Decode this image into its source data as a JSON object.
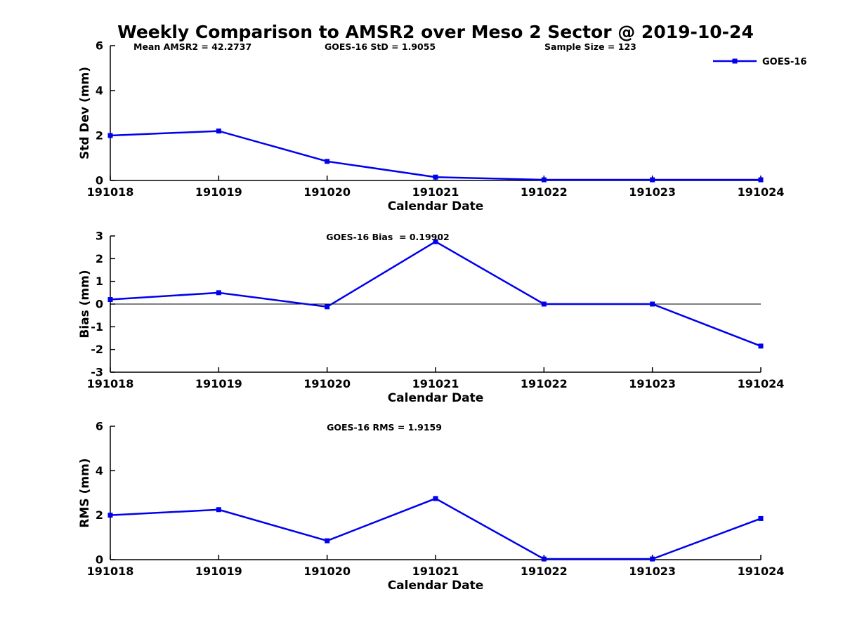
{
  "page": {
    "title": "Weekly Comparison to AMSR2 over Meso 2 Sector @ 2019-10-24"
  },
  "colors": {
    "line": "#0000EE",
    "axis": "#000000",
    "text": "#000000",
    "background": "#FFFFFF"
  },
  "legend": {
    "label": "GOES-16"
  },
  "chart_data": [
    {
      "id": "std-dev",
      "type": "line",
      "title": "",
      "xlabel": "Calendar Date",
      "ylabel": "Std Dev (mm)",
      "ylim": [
        0,
        6
      ],
      "yticks": [
        0,
        2,
        4,
        6
      ],
      "categories": [
        "191018",
        "191019",
        "191020",
        "191021",
        "191022",
        "191023",
        "191024"
      ],
      "series": [
        {
          "name": "GOES-16",
          "values": [
            2.0,
            2.2,
            0.85,
            0.15,
            0.03,
            0.03,
            0.03
          ]
        }
      ],
      "annotations": [
        {
          "text": "Mean AMSR2 = 42.2737",
          "x": 190,
          "anchor": "start"
        },
        {
          "text": "GOES-16 StD = 1.9055",
          "x": 462,
          "anchor": "start"
        },
        {
          "text": "Sample Size = 123",
          "x": 775,
          "anchor": "start"
        }
      ],
      "zero_line": false,
      "show_legend": true,
      "legend_position": "top-right",
      "grid": false
    },
    {
      "id": "bias",
      "type": "line",
      "title": "",
      "xlabel": "Calendar Date",
      "ylabel": "Bias (mm)",
      "ylim": [
        -3,
        3
      ],
      "yticks": [
        -3,
        -2,
        -1,
        0,
        1,
        2,
        3
      ],
      "categories": [
        "191018",
        "191019",
        "191020",
        "191021",
        "191022",
        "191023",
        "191024"
      ],
      "series": [
        {
          "name": "GOES-16",
          "values": [
            0.2,
            0.5,
            -0.12,
            2.75,
            0.0,
            0.0,
            -1.85
          ]
        }
      ],
      "annotations": [
        {
          "text": "GOES-16 Bias  = 0.19902",
          "x": 552,
          "anchor": "middle"
        }
      ],
      "zero_line": true,
      "show_legend": false,
      "grid": false
    },
    {
      "id": "rms",
      "type": "line",
      "title": "",
      "xlabel": "Calendar Date",
      "ylabel": "RMS (mm)",
      "ylim": [
        0,
        6
      ],
      "yticks": [
        0,
        2,
        4,
        6
      ],
      "categories": [
        "191018",
        "191019",
        "191020",
        "191021",
        "191022",
        "191023",
        "191024"
      ],
      "series": [
        {
          "name": "GOES-16",
          "values": [
            2.0,
            2.25,
            0.85,
            2.75,
            0.03,
            0.03,
            1.85
          ]
        }
      ],
      "annotations": [
        {
          "text": "GOES-16 RMS = 1.9159",
          "x": 547,
          "anchor": "middle"
        }
      ],
      "zero_line": false,
      "show_legend": false,
      "grid": false
    }
  ]
}
